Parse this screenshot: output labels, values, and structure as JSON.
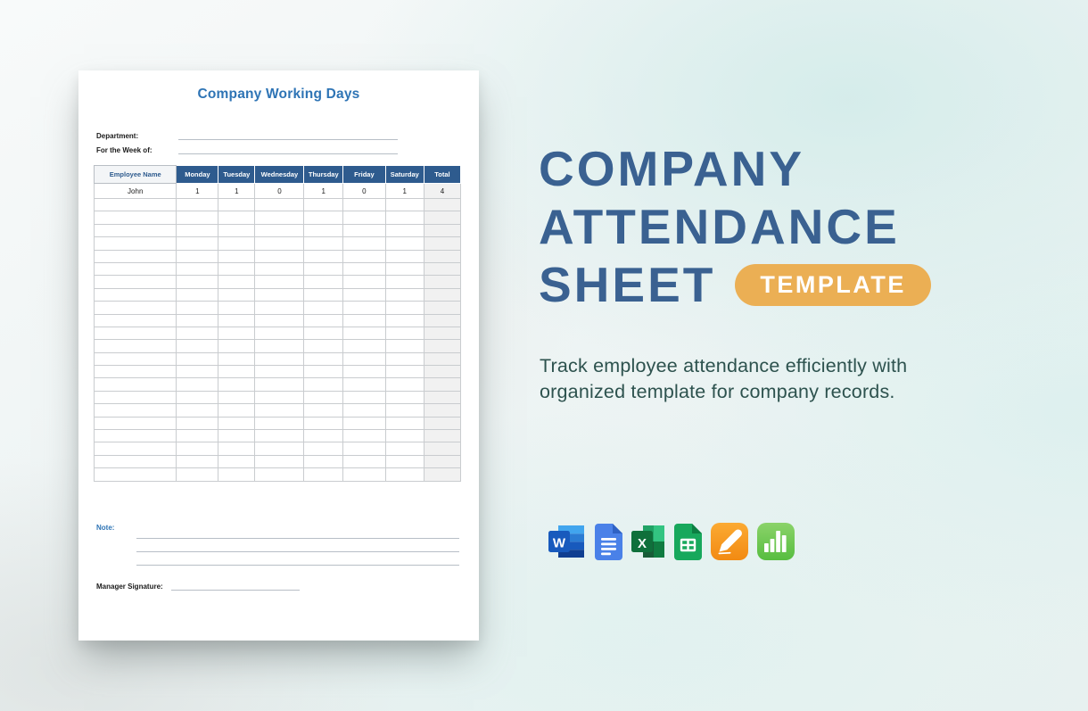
{
  "paper": {
    "title": "Company Working Days",
    "title_color": "#2e74b5",
    "fields": [
      {
        "label": "Department:"
      },
      {
        "label": "For the Week of:"
      }
    ],
    "table": {
      "header_bg": "#2e5b8e",
      "headers": [
        "Employee Name",
        "Monday",
        "Tuesday",
        "Wednesday",
        "Thursday",
        "Friday",
        "Saturday",
        "Total"
      ],
      "data_rows": [
        [
          "John",
          "1",
          "1",
          "0",
          "1",
          "0",
          "1",
          "4"
        ]
      ],
      "empty_rows": 22
    },
    "note_label": "Note:",
    "note_line_count": 3,
    "signature_label": "Manager Signature:"
  },
  "hero": {
    "title_lines": [
      "COMPANY",
      "ATTENDANCE",
      "SHEET"
    ],
    "title_color": "#3a6191",
    "badge_label": "TEMPLATE",
    "badge_bg": "#ebaf54",
    "description_lines": [
      "Track employee attendance efficiently with",
      "organized template for company records."
    ],
    "description_color": "#2d524e",
    "app_icons": [
      {
        "name": "microsoft-word"
      },
      {
        "name": "google-docs"
      },
      {
        "name": "microsoft-excel"
      },
      {
        "name": "google-sheets"
      },
      {
        "name": "apple-pages"
      },
      {
        "name": "apple-numbers"
      }
    ]
  }
}
